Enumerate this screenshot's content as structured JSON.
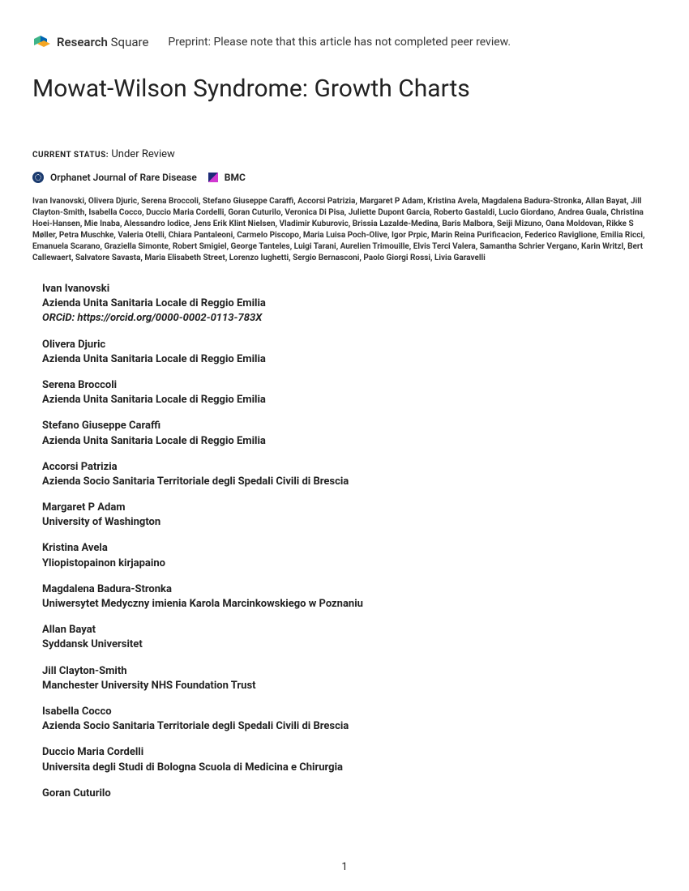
{
  "header": {
    "logo_text_1": "Research",
    "logo_text_2": "Square",
    "preprint_notice": "Preprint: Please note that this article has not completed peer review."
  },
  "title": "Mowat-Wilson Syndrome: Growth Charts",
  "status": {
    "label": "CURRENT STATUS:",
    "value": "Under Review"
  },
  "journal": {
    "name": "Orphanet Journal of Rare Disease",
    "publisher": "BMC"
  },
  "authors_summary": "Ivan Ivanovski, Olivera Djuric, Serena Broccoli, Stefano Giuseppe Caraffi, Accorsi Patrizia, Margaret P Adam, Kristina Avela, Magdalena Badura-Stronka, Allan Bayat, Jill Clayton-Smith, Isabella Cocco, Duccio Maria Cordelli, Goran Cuturilo, Veronica Di Pisa, Juliette Dupont Garcia, Roberto Gastaldi, Lucio Giordano, Andrea Guala, Christina Hoei-Hansen, Mie Inaba, Alessandro Iodice, Jens Erik Klint Nielsen, Vladimir Kuburovic, Brissia Lazalde-Medina, Baris Malbora, Seiji Mizuno, Oana Moldovan, Rikke S Møller, Petra Muschke, Valeria Otelli, Chiara Pantaleoni, Carmelo Piscopo, Maria Luisa Poch-Olive, Igor Prpic, Marin Reina Purificacion, Federico Raviglione, Emilia Ricci, Emanuela Scarano, Graziella Simonte, Robert Smigiel, George Tanteles, Luigi Tarani, Aurelien Trimouille, Elvis Terci Valera, Samantha Schrier Vergano, Karin Writzl, Bert Callewaert, Salvatore Savasta, Maria Elisabeth Street, Lorenzo Iughetti, Sergio Bernasconi, Paolo Giorgi Rossi, Livia Garavelli",
  "author_details": [
    {
      "name": "Ivan Ivanovski",
      "affiliation": "Azienda Unita Sanitaria Locale di Reggio Emilia",
      "orcid": "ORCiD: https://orcid.org/0000-0002-0113-783X"
    },
    {
      "name": "Olivera Djuric",
      "affiliation": "Azienda Unita Sanitaria Locale di Reggio Emilia"
    },
    {
      "name": "Serena Broccoli",
      "affiliation": "Azienda Unita Sanitaria Locale di Reggio Emilia"
    },
    {
      "name": "Stefano Giuseppe Caraffi",
      "affiliation": "Azienda Unita Sanitaria Locale di Reggio Emilia"
    },
    {
      "name": "Accorsi Patrizia",
      "affiliation": "Azienda Socio Sanitaria Territoriale degli Spedali Civili di Brescia"
    },
    {
      "name": "Margaret P Adam",
      "affiliation": "University of Washington"
    },
    {
      "name": "Kristina Avela",
      "affiliation": "Yliopistopainon kirjapaino"
    },
    {
      "name": "Magdalena Badura-Stronka",
      "affiliation": "Uniwersytet Medyczny imienia Karola Marcinkowskiego w Poznaniu"
    },
    {
      "name": "Allan Bayat",
      "affiliation": "Syddansk Universitet"
    },
    {
      "name": "Jill Clayton-Smith",
      "affiliation": "Manchester University NHS Foundation Trust"
    },
    {
      "name": "Isabella Cocco",
      "affiliation": "Azienda Socio Sanitaria Territoriale degli Spedali Civili di Brescia"
    },
    {
      "name": "Duccio Maria Cordelli",
      "affiliation": "Universita degli Studi di Bologna Scuola di Medicina e Chirurgia"
    },
    {
      "name": "Goran Cuturilo",
      "affiliation": ""
    }
  ],
  "page_number": "1",
  "colors": {
    "text": "#222222",
    "background": "#ffffff",
    "logo_green": "#3eb489",
    "logo_blue": "#0066b3",
    "logo_yellow": "#f5a623"
  }
}
